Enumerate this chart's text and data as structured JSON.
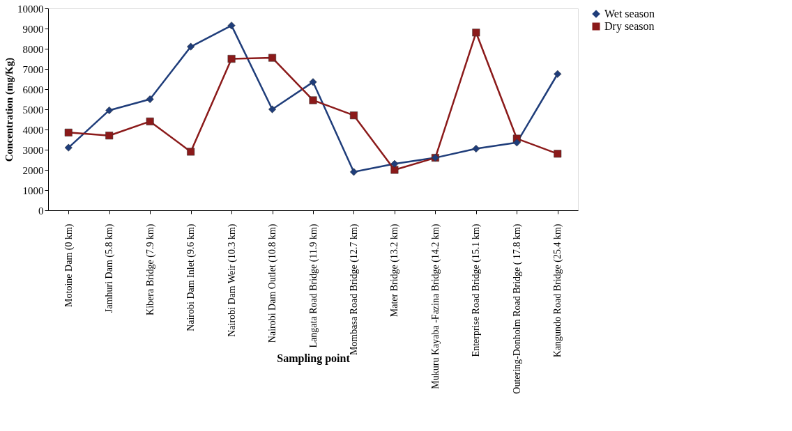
{
  "chart_data": {
    "type": "line",
    "xlabel": "Sampling point",
    "ylabel": "Concentration (mg/Kg)",
    "categories": [
      "Motoine Dam (0 km)",
      "Jamhuri Dam (5.8 km)",
      "Kibera Bridge (7.9 km)",
      "Nairobi Dam Inlet (9.6 km)",
      "Nairobi Dam Weir (10.3 km)",
      "Nairobi Dam Outlet (10.8 km)",
      "Langata Road Bridge (11.9 km)",
      "Mombasa Road Bridge (12.7 km)",
      "Mater Bridge (13.2 km)",
      "Mukuru Kayaba -Fazina Bridge (14.2 km)",
      "Enterprise Road Bridge (15.1 km)",
      "Outering-Donholm Road Bridge ( 17.8 km)",
      "Kangundo Road Bridge (25.4 km)"
    ],
    "series": [
      {
        "name": "Wet season",
        "color": "#1f3d7a",
        "marker": "diamond",
        "values": [
          3100,
          4950,
          5500,
          8100,
          9150,
          5000,
          6350,
          1900,
          2300,
          2600,
          3050,
          3350,
          6750
        ]
      },
      {
        "name": "Dry season",
        "color": "#8b1a1a",
        "marker": "square",
        "values": [
          3850,
          3700,
          4400,
          2900,
          7500,
          7550,
          5450,
          4700,
          2000,
          2600,
          8800,
          3550,
          2800
        ]
      }
    ],
    "ylim": [
      0,
      10000
    ],
    "yticks": [
      0,
      1000,
      2000,
      3000,
      4000,
      5000,
      6000,
      7000,
      8000,
      9000,
      10000
    ],
    "grid": false,
    "legend": "top right",
    "line_style": "solid"
  }
}
